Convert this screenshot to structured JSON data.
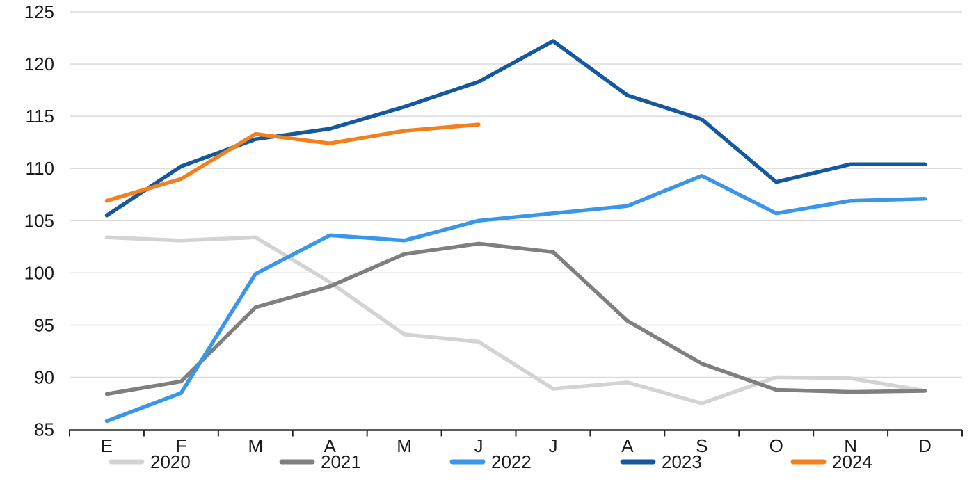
{
  "chart_data": {
    "type": "line",
    "x_axis": {
      "categories": [
        "E",
        "F",
        "M",
        "A",
        "M",
        "J",
        "J",
        "A",
        "S",
        "O",
        "N",
        "D"
      ]
    },
    "y_axis": {
      "min": 85,
      "max": 125,
      "step": 5,
      "tick_labels": [
        "85",
        "90",
        "95",
        "100",
        "105",
        "110",
        "115",
        "120",
        "125"
      ]
    },
    "grid": true,
    "legend_position": "bottom",
    "series": [
      {
        "name": "2020",
        "color": "#D3D3D3",
        "values": [
          103.4,
          103.1,
          103.4,
          99.1,
          94.1,
          93.4,
          88.9,
          89.5,
          87.5,
          90.0,
          89.9,
          88.7
        ]
      },
      {
        "name": "2021",
        "color": "#7F7F7F",
        "values": [
          88.4,
          89.6,
          96.7,
          98.7,
          101.8,
          102.8,
          102.0,
          95.4,
          91.3,
          88.8,
          88.6,
          88.7
        ]
      },
      {
        "name": "2022",
        "color": "#3A96E8",
        "values": [
          85.8,
          88.5,
          99.9,
          103.6,
          103.1,
          105.0,
          105.7,
          106.4,
          109.3,
          105.7,
          106.9,
          107.1
        ]
      },
      {
        "name": "2023",
        "color": "#15589E",
        "values": [
          105.5,
          110.2,
          112.8,
          113.8,
          115.9,
          118.3,
          122.2,
          117.0,
          114.7,
          108.7,
          110.4,
          110.4
        ]
      },
      {
        "name": "2024",
        "color": "#F2801E",
        "values": [
          106.9,
          109.0,
          113.3,
          112.4,
          113.6,
          114.2
        ]
      }
    ]
  },
  "colors": {
    "background": "#FFFFFF",
    "gridline": "#D9D9D9",
    "axis": "#262626",
    "text": "#1A1A1A"
  }
}
